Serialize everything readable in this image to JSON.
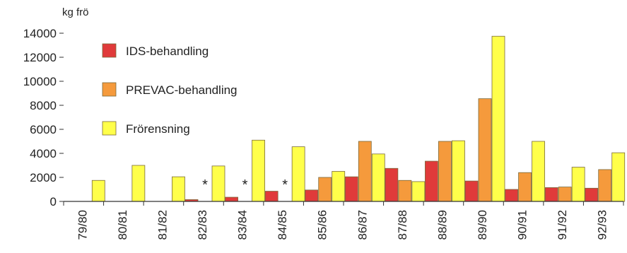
{
  "chart_data": {
    "type": "bar",
    "ylabel": "kg frö",
    "ylim": [
      0,
      14000
    ],
    "yticks": [
      0,
      2000,
      4000,
      6000,
      8000,
      10000,
      12000,
      14000
    ],
    "grid": false,
    "legend_position": "top-left",
    "categories": [
      "79/80",
      "80/81",
      "81/82",
      "82/83",
      "83/84",
      "84/85",
      "85/86",
      "86/87",
      "87/88",
      "88/89",
      "89/90",
      "90/91",
      "91/92",
      "92/93"
    ],
    "series": [
      {
        "name": "IDS-behandling",
        "color": "#e03a3a",
        "values": [
          null,
          null,
          null,
          150,
          350,
          850,
          950,
          2050,
          2750,
          3350,
          1700,
          1000,
          1150,
          1100
        ]
      },
      {
        "name": "PREVAC-behandling",
        "color": "#f59a3c",
        "values": [
          null,
          null,
          null,
          null,
          null,
          null,
          2000,
          5000,
          1750,
          5000,
          8550,
          2400,
          1200,
          2650
        ]
      },
      {
        "name": "Frörensning",
        "color": "#ffff4a",
        "values": [
          1750,
          3000,
          2050,
          2950,
          5100,
          4550,
          2500,
          3950,
          1650,
          5050,
          13750,
          5000,
          2850,
          4050
        ]
      }
    ],
    "annotations": [
      {
        "category": "82/83",
        "text": "*"
      },
      {
        "category": "83/84",
        "text": "*"
      },
      {
        "category": "84/85",
        "text": "*"
      }
    ]
  }
}
